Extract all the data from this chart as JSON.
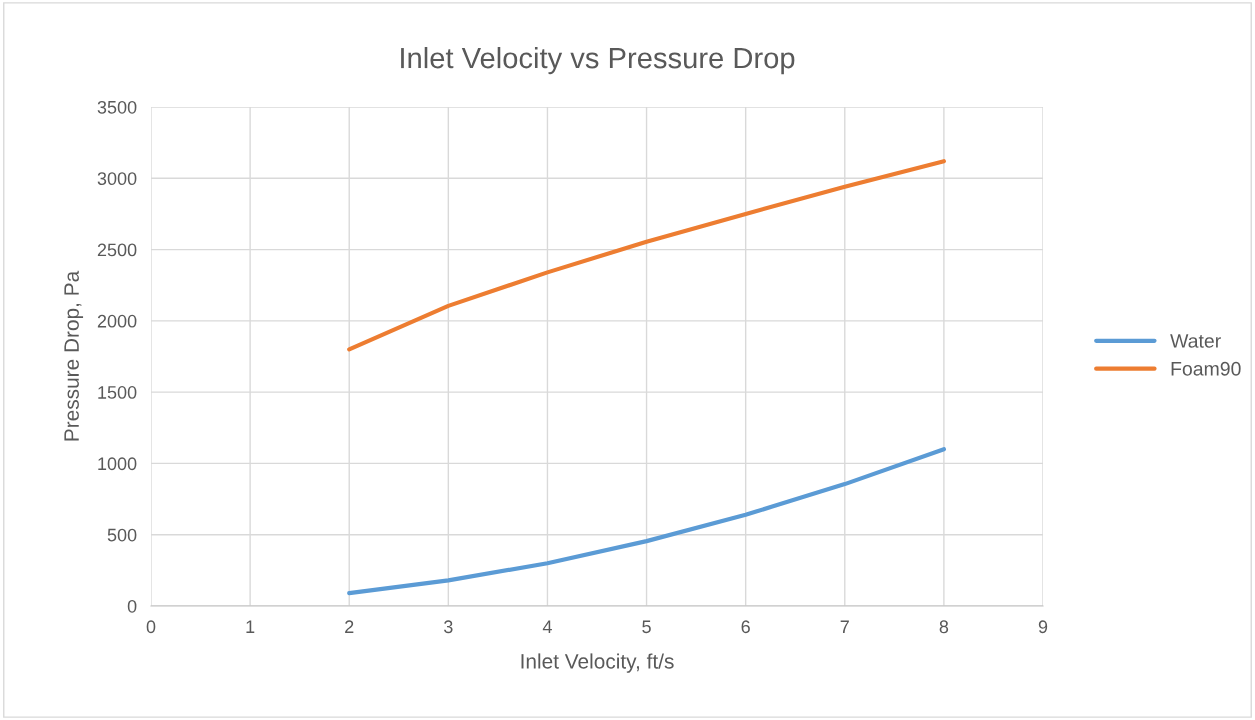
{
  "chart_data": {
    "type": "line",
    "title": "Inlet Velocity vs Pressure Drop",
    "xlabel": "Inlet Velocity, ft/s",
    "ylabel": "Pressure Drop, Pa",
    "x": [
      2,
      3,
      4,
      5,
      6,
      7,
      8
    ],
    "series": [
      {
        "name": "Water",
        "color": "#5b9bd5",
        "values": [
          90,
          180,
          300,
          455,
          640,
          855,
          1100
        ]
      },
      {
        "name": "Foam90",
        "color": "#ed7d31",
        "values": [
          1800,
          2105,
          2340,
          2555,
          2750,
          2940,
          3120
        ]
      }
    ],
    "xlim": [
      0,
      9
    ],
    "xticks": [
      0,
      1,
      2,
      3,
      4,
      5,
      6,
      7,
      8,
      9
    ],
    "ylim": [
      0,
      3500
    ],
    "yticks": [
      0,
      500,
      1000,
      1500,
      2000,
      2500,
      3000,
      3500
    ],
    "grid": true,
    "legend": "right",
    "marker": "none",
    "line_style": "solid"
  }
}
